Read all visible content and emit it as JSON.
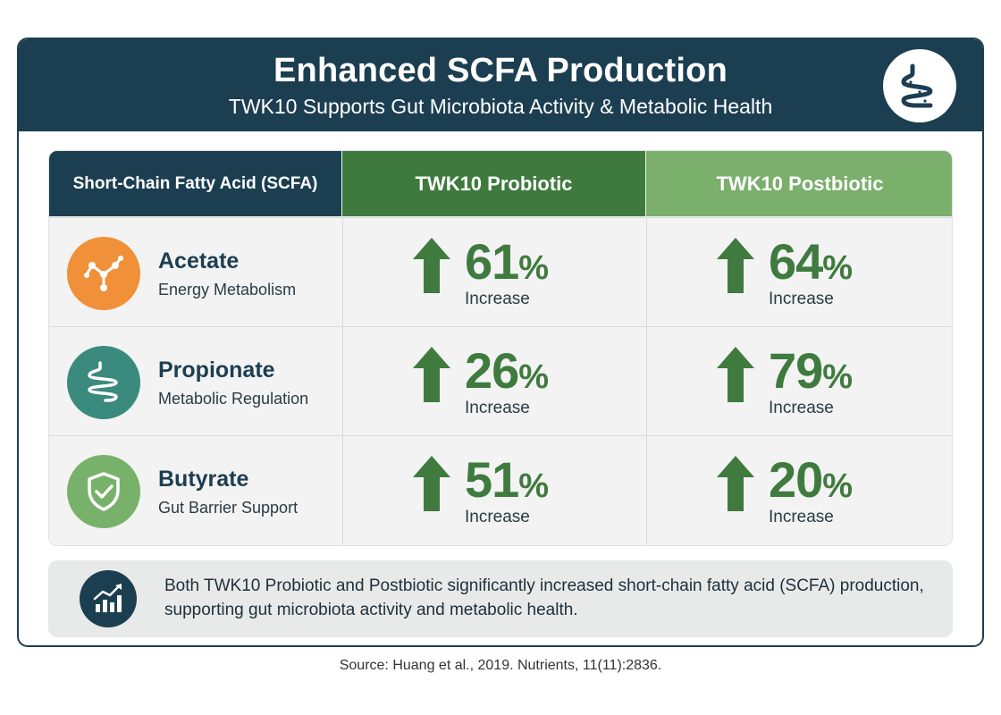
{
  "header": {
    "title": "Enhanced SCFA Production",
    "subtitle": "TWK10 Supports Gut Microbiota Activity & Metabolic Health",
    "icon": "gut-icon"
  },
  "table": {
    "headers": {
      "scfa": "Short-Chain Fatty Acid (SCFA)",
      "probiotic": "TWK10 Probiotic",
      "postbiotic": "TWK10 Postbiotic"
    },
    "rows": [
      {
        "name": "Acetate",
        "desc": "Energy Metabolism",
        "icon": "molecule-icon",
        "color": "#f0913a",
        "probiotic": {
          "value": "61",
          "unit": "%",
          "label": "Increase"
        },
        "postbiotic": {
          "value": "64",
          "unit": "%",
          "label": "Increase"
        }
      },
      {
        "name": "Propionate",
        "desc": "Metabolic Regulation",
        "icon": "intestine-icon",
        "color": "#3b8a7e",
        "probiotic": {
          "value": "26",
          "unit": "%",
          "label": "Increase"
        },
        "postbiotic": {
          "value": "79",
          "unit": "%",
          "label": "Increase"
        }
      },
      {
        "name": "Butyrate",
        "desc": "Gut Barrier Support",
        "icon": "shield-check-icon",
        "color": "#78b26a",
        "probiotic": {
          "value": "51",
          "unit": "%",
          "label": "Increase"
        },
        "postbiotic": {
          "value": "20",
          "unit": "%",
          "label": "Increase"
        }
      }
    ]
  },
  "summary": {
    "icon": "growth-chart-icon",
    "text": "Both TWK10 Probiotic and Postbiotic significantly increased short-chain fatty acid (SCFA) production, supporting gut microbiota activity and metabolic health."
  },
  "source": "Source: Huang et al., 2019. Nutrients, 11(11):2836.",
  "colors": {
    "navy": "#1c3e51",
    "dark_green": "#3e7a3e",
    "light_green": "#7aaf6c",
    "value_green": "#3f7a3f"
  }
}
